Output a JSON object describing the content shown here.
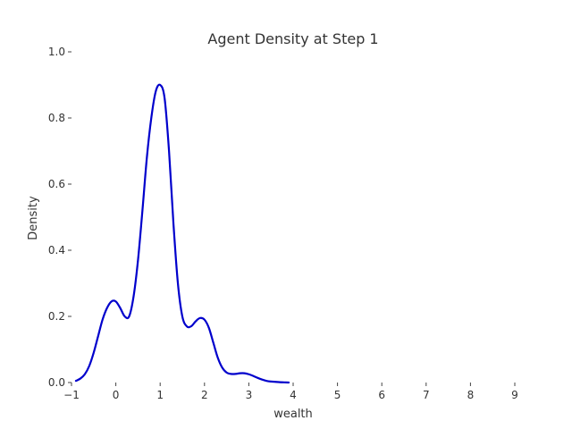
{
  "chart_data": {
    "type": "line",
    "title": "Agent Density at Step 1",
    "xlabel": "wealth",
    "ylabel": "Density",
    "xlim": [
      -1,
      9
    ],
    "ylim": [
      0,
      1.0
    ],
    "x_ticks": [
      "−1",
      "0",
      "1",
      "2",
      "3",
      "4",
      "5",
      "6",
      "7",
      "8",
      "9"
    ],
    "y_ticks": [
      "0.0",
      "0.2",
      "0.4",
      "0.6",
      "0.8",
      "1.0"
    ],
    "grid": false,
    "series": [
      {
        "color": "#0000cc",
        "x": [
          -0.9,
          -0.8,
          -0.7,
          -0.6,
          -0.5,
          -0.4,
          -0.3,
          -0.2,
          -0.1,
          0.0,
          0.1,
          0.2,
          0.3,
          0.4,
          0.5,
          0.6,
          0.7,
          0.8,
          0.9,
          1.0,
          1.1,
          1.2,
          1.3,
          1.4,
          1.5,
          1.6,
          1.7,
          1.8,
          1.9,
          2.0,
          2.1,
          2.2,
          2.3,
          2.4,
          2.5,
          2.6,
          2.7,
          2.8,
          2.9,
          3.0,
          3.1,
          3.2,
          3.3,
          3.4,
          3.5,
          3.6,
          3.7,
          3.8,
          3.9
        ],
        "y": [
          0.005,
          0.012,
          0.025,
          0.05,
          0.09,
          0.14,
          0.19,
          0.225,
          0.245,
          0.245,
          0.225,
          0.2,
          0.2,
          0.26,
          0.37,
          0.52,
          0.68,
          0.8,
          0.88,
          0.9,
          0.86,
          0.7,
          0.48,
          0.3,
          0.2,
          0.17,
          0.17,
          0.185,
          0.195,
          0.19,
          0.165,
          0.12,
          0.075,
          0.045,
          0.03,
          0.026,
          0.026,
          0.028,
          0.028,
          0.025,
          0.02,
          0.014,
          0.009,
          0.005,
          0.003,
          0.002,
          0.001,
          0.0005,
          0.0
        ]
      }
    ]
  }
}
